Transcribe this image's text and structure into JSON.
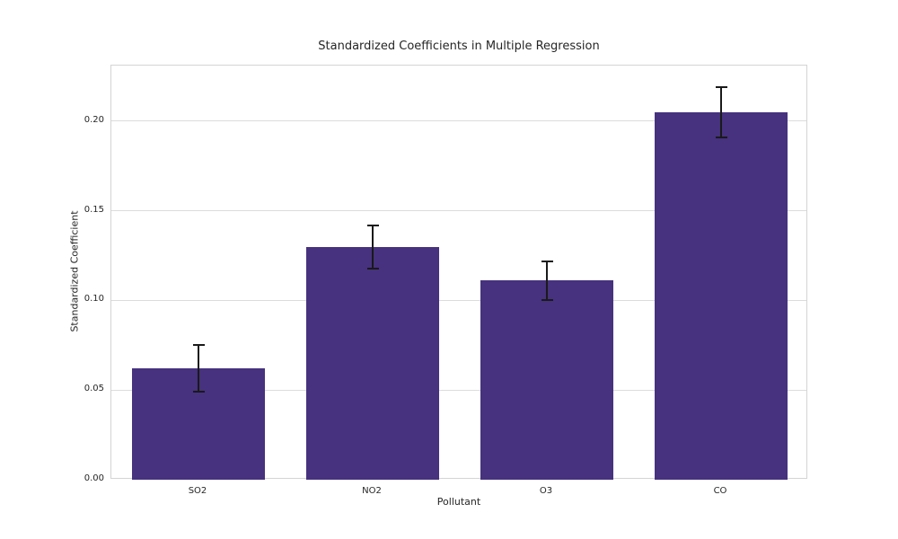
{
  "chart_data": {
    "type": "bar",
    "title": "Standardized Coefficients in Multiple Regression",
    "xlabel": "Pollutant",
    "ylabel": "Standardized Coefficient",
    "categories": [
      "SO2",
      "NO2",
      "O3",
      "CO"
    ],
    "values": [
      0.062,
      0.13,
      0.111,
      0.205
    ],
    "errors": [
      0.013,
      0.012,
      0.011,
      0.014
    ],
    "yticks": [
      0.0,
      0.05,
      0.1,
      0.15,
      0.2
    ],
    "ytick_labels": [
      "0.00",
      "0.05",
      "0.10",
      "0.15",
      "0.20"
    ],
    "ylim": [
      0,
      0.231
    ],
    "grid": true,
    "legend": "none",
    "bar_color": "#46327e",
    "error_color": "#1a1a1a",
    "grid_color": "#dcdcdc",
    "spine_color": "#d4d4d4",
    "background_color": "#ffffff",
    "text_color": "#262626"
  }
}
